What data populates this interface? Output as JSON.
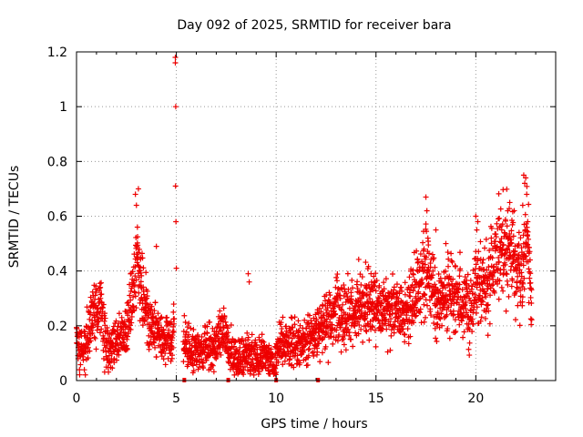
{
  "chart_data": {
    "type": "scatter",
    "title": "Day 092 of 2025, SRMTID for receiver bara",
    "xlabel": "GPS time / hours",
    "ylabel": "SRMTID / TECUs",
    "xlim": [
      0,
      24
    ],
    "ylim": [
      0,
      1.2
    ],
    "xticks": [
      "0",
      "5",
      "10",
      "15",
      "20"
    ],
    "xtick_values": [
      0,
      5,
      10,
      15,
      20
    ],
    "yticks": [
      "0",
      "0.2",
      "0.4",
      "0.6",
      "0.8",
      "1",
      "1.2"
    ],
    "ytick_values": [
      0,
      0.2,
      0.4,
      0.6,
      0.8,
      1.0,
      1.2
    ],
    "grid": true,
    "marker": "plus",
    "series_color": "#ee0000",
    "envelope_hours": [
      0.0,
      0.3,
      0.6,
      0.9,
      1.2,
      1.5,
      2.0,
      2.5,
      2.8,
      3.0,
      3.3,
      3.6,
      4.0,
      4.5,
      4.8,
      5.0,
      5.5,
      6.0,
      6.5,
      7.0,
      7.3,
      7.6,
      8.0,
      8.5,
      9.0,
      9.5,
      9.9,
      10.2,
      10.6,
      11.0,
      11.5,
      12.0,
      12.5,
      13.0,
      13.5,
      14.0,
      14.5,
      15.0,
      15.5,
      16.0,
      16.5,
      17.0,
      17.5,
      18.0,
      18.5,
      19.0,
      19.5,
      19.8,
      20.0,
      20.5,
      21.0,
      21.5,
      22.0,
      22.3,
      22.6,
      22.8
    ],
    "envelope_levels": [
      0.14,
      0.1,
      0.18,
      0.24,
      0.27,
      0.12,
      0.14,
      0.17,
      0.32,
      0.42,
      0.33,
      0.22,
      0.18,
      0.15,
      0.16,
      0.28,
      0.12,
      0.1,
      0.12,
      0.13,
      0.18,
      0.12,
      0.08,
      0.1,
      0.08,
      0.09,
      0.05,
      0.16,
      0.13,
      0.14,
      0.14,
      0.17,
      0.22,
      0.25,
      0.24,
      0.26,
      0.28,
      0.27,
      0.26,
      0.27,
      0.25,
      0.33,
      0.42,
      0.3,
      0.32,
      0.31,
      0.28,
      0.25,
      0.38,
      0.33,
      0.42,
      0.5,
      0.42,
      0.38,
      0.55,
      0.25
    ],
    "spikes": [
      {
        "x": 2.95,
        "y": 0.68
      },
      {
        "x": 3.0,
        "y": 0.64
      },
      {
        "x": 3.05,
        "y": 0.56
      },
      {
        "x": 3.1,
        "y": 0.7
      },
      {
        "x": 3.2,
        "y": 0.45
      },
      {
        "x": 4.0,
        "y": 0.49
      },
      {
        "x": 4.95,
        "y": 1.18
      },
      {
        "x": 4.95,
        "y": 1.16
      },
      {
        "x": 4.97,
        "y": 1.0
      },
      {
        "x": 4.96,
        "y": 0.71
      },
      {
        "x": 4.98,
        "y": 0.58
      },
      {
        "x": 5.0,
        "y": 0.41
      },
      {
        "x": 8.6,
        "y": 0.39
      },
      {
        "x": 8.65,
        "y": 0.36
      },
      {
        "x": 17.5,
        "y": 0.67
      },
      {
        "x": 17.55,
        "y": 0.62
      },
      {
        "x": 17.6,
        "y": 0.52
      },
      {
        "x": 18.0,
        "y": 0.55
      },
      {
        "x": 18.5,
        "y": 0.5
      },
      {
        "x": 20.0,
        "y": 0.6
      },
      {
        "x": 20.1,
        "y": 0.58
      },
      {
        "x": 20.05,
        "y": 0.55
      },
      {
        "x": 21.3,
        "y": 0.55
      },
      {
        "x": 21.6,
        "y": 0.62
      },
      {
        "x": 21.7,
        "y": 0.65
      },
      {
        "x": 22.4,
        "y": 0.75
      },
      {
        "x": 22.5,
        "y": 0.74
      },
      {
        "x": 22.45,
        "y": 0.72
      },
      {
        "x": 22.55,
        "y": 0.68
      },
      {
        "x": 22.35,
        "y": 0.64
      },
      {
        "x": 22.6,
        "y": 0.58
      }
    ],
    "bottom_markers_x": [
      5.4,
      7.6,
      10.0,
      12.1
    ]
  }
}
